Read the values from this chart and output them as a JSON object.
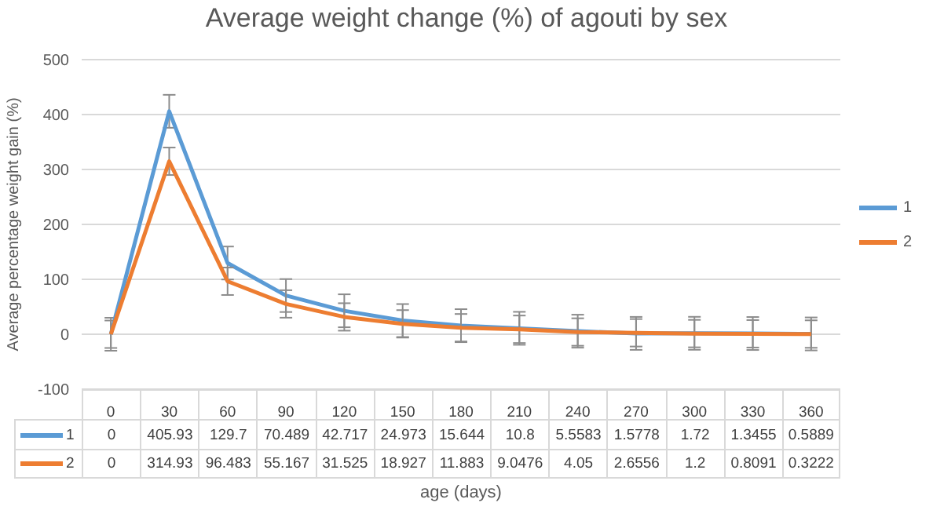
{
  "chart_data": {
    "type": "line",
    "title": "Average weight change (%) of agouti by sex",
    "xlabel": "age (days)",
    "ylabel": "Average percentage weight gain (%)",
    "categories": [
      "0",
      "30",
      "60",
      "90",
      "120",
      "150",
      "180",
      "210",
      "240",
      "270",
      "300",
      "330",
      "360"
    ],
    "series": [
      {
        "name": "1",
        "color": "#5b9bd5",
        "values": [
          0,
          405.93,
          129.7,
          70.489,
          42.717,
          24.973,
          15.644,
          10.8,
          5.5583,
          1.5778,
          1.72,
          1.3455,
          0.5889
        ],
        "errors": [
          30,
          30,
          30,
          30,
          30,
          30,
          30,
          30,
          30,
          30,
          30,
          30,
          30
        ]
      },
      {
        "name": "2",
        "color": "#ed7d31",
        "values": [
          0,
          314.93,
          96.483,
          55.167,
          31.525,
          18.927,
          11.883,
          9.0476,
          4.05,
          2.6556,
          1.2,
          0.8091,
          0.3222
        ],
        "errors": [
          25,
          25,
          25,
          25,
          25,
          25,
          25,
          25,
          25,
          25,
          25,
          25,
          25
        ]
      }
    ],
    "ylim": [
      -100,
      500
    ],
    "yticks": [
      -100,
      0,
      100,
      200,
      300,
      400,
      500
    ],
    "grid": "y",
    "legend": "right",
    "data_labels": true,
    "marker": "none",
    "line_style": "solid"
  }
}
